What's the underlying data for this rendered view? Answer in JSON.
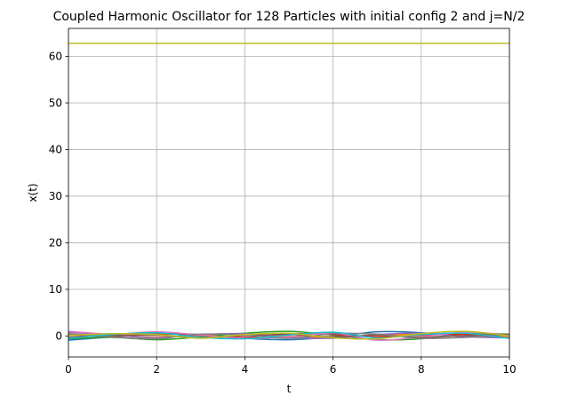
{
  "chart_data": {
    "type": "line",
    "title": "Coupled Harmonic Oscillator for 128 Particles with initial config 2 and j=N/2",
    "xlabel": "t",
    "ylabel": "x(t)",
    "xlim": [
      0,
      10
    ],
    "ylim": [
      -4.5,
      66
    ],
    "xticks": [
      0,
      2,
      4,
      6,
      8,
      10
    ],
    "yticks": [
      0,
      10,
      20,
      30,
      40,
      50,
      60
    ],
    "grid": true,
    "legend": "none",
    "series": [
      {
        "color": "#bcbd22",
        "x": [
          0,
          10
        ],
        "y": [
          62.8,
          62.8
        ]
      },
      {
        "color": "#1f77b4",
        "x": [
          0,
          1,
          2,
          3,
          4,
          5,
          6,
          7,
          8,
          9,
          10
        ],
        "y": [
          -0.9,
          -0.2,
          0.5,
          0.3,
          -0.5,
          -0.8,
          -0.2,
          0.9,
          0.7,
          -0.1,
          -0.3
        ]
      },
      {
        "color": "#ff7f0e",
        "x": [
          0,
          1,
          2,
          3,
          4,
          5,
          6,
          7,
          8,
          9,
          10
        ],
        "y": [
          0.4,
          0.1,
          -0.3,
          0.2,
          0.4,
          -0.1,
          -0.3,
          0.1,
          0.4,
          0.2,
          -0.2
        ]
      },
      {
        "color": "#2ca02c",
        "x": [
          0,
          1,
          2,
          3,
          4,
          5,
          6,
          7,
          8,
          9,
          10
        ],
        "y": [
          -0.6,
          -0.3,
          -0.8,
          -0.2,
          0.6,
          1.0,
          0.2,
          -0.8,
          -0.6,
          0.5,
          0.4
        ]
      },
      {
        "color": "#d62728",
        "x": [
          0,
          1,
          2,
          3,
          4,
          5,
          6,
          7,
          8,
          9,
          10
        ],
        "y": [
          0.2,
          -0.1,
          0.4,
          0.1,
          -0.3,
          0.5,
          0.3,
          -0.2,
          0.2,
          0.4,
          0.1
        ]
      },
      {
        "color": "#9467bd",
        "x": [
          0,
          1,
          2,
          3,
          4,
          5,
          6,
          7,
          8,
          9,
          10
        ],
        "y": [
          0.8,
          0.2,
          -0.4,
          0.3,
          0.5,
          -0.3,
          -0.5,
          0.3,
          0.6,
          -0.2,
          -0.4
        ]
      },
      {
        "color": "#e377c2",
        "x": [
          0,
          1,
          2,
          3,
          4,
          5,
          6,
          7,
          8,
          9,
          10
        ],
        "y": [
          1.0,
          0.4,
          0.9,
          0.2,
          -0.5,
          -0.2,
          0.6,
          -0.9,
          -0.2,
          0.8,
          0.2
        ]
      },
      {
        "color": "#8c564b",
        "x": [
          0,
          1,
          2,
          3,
          4,
          5,
          6,
          7,
          8,
          9,
          10
        ],
        "y": [
          -0.3,
          0.1,
          0.2,
          -0.4,
          0.1,
          0.3,
          -0.2,
          0.2,
          -0.3,
          0.1,
          0.3
        ]
      },
      {
        "color": "#7f7f7f",
        "x": [
          0,
          1,
          2,
          3,
          4,
          5,
          6,
          7,
          8,
          9,
          10
        ],
        "y": [
          0.5,
          -0.2,
          -0.6,
          0.4,
          0.2,
          -0.5,
          0.5,
          0.4,
          -0.5,
          -0.3,
          0.2
        ]
      },
      {
        "color": "#17becf",
        "x": [
          0,
          1,
          2,
          3,
          4,
          5,
          6,
          7,
          8,
          9,
          10
        ],
        "y": [
          -0.5,
          0.3,
          0.7,
          -0.3,
          -0.6,
          0.2,
          0.8,
          -0.4,
          0.3,
          0.6,
          -0.5
        ]
      },
      {
        "color": "#bcbd22",
        "x": [
          0,
          1,
          2,
          3,
          4,
          5,
          6,
          7,
          8,
          9,
          10
        ],
        "y": [
          0.1,
          0.5,
          0.3,
          -0.5,
          0.3,
          0.6,
          -0.4,
          -0.6,
          0.5,
          1.0,
          0.0
        ]
      }
    ]
  }
}
